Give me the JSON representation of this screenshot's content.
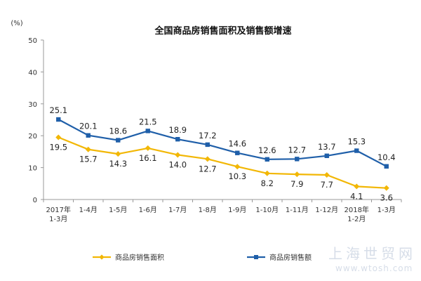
{
  "chart_data": {
    "type": "line",
    "title": "全国商品房销售面积及销售额增速",
    "unit_label": "(%)",
    "categories": [
      [
        "2017年",
        "1-3月"
      ],
      [
        "1-4月"
      ],
      [
        "1-5月"
      ],
      [
        "1-6月"
      ],
      [
        "1-7月"
      ],
      [
        "1-8月"
      ],
      [
        "1-9月"
      ],
      [
        "1-10月"
      ],
      [
        "1-11月"
      ],
      [
        "1-12月"
      ],
      [
        "2018年",
        "1-2月"
      ],
      [
        "1-3月"
      ]
    ],
    "y_ticks": [
      0,
      10,
      20,
      30,
      40,
      50
    ],
    "ylim": [
      0,
      50
    ],
    "grid": false,
    "legend_position": "bottom",
    "series": [
      {
        "name": "商品房销售面积",
        "color": "#f2b705",
        "marker": "diamond",
        "values": [
          19.5,
          15.7,
          14.3,
          16.1,
          14.0,
          12.7,
          10.3,
          8.2,
          7.9,
          7.7,
          4.1,
          3.6
        ],
        "labels": [
          "19.5",
          "15.7",
          "14.3",
          "16.1",
          "14.0",
          "12.7",
          "10.3",
          "8.2",
          "7.9",
          "7.7",
          "4.1",
          "3.6"
        ]
      },
      {
        "name": "商品房销售额",
        "color": "#1f5fa9",
        "marker": "square",
        "values": [
          25.1,
          20.1,
          18.6,
          21.5,
          18.9,
          17.2,
          14.6,
          12.6,
          12.7,
          13.7,
          15.3,
          10.4
        ],
        "labels": [
          "25.1",
          "20.1",
          "18.6",
          "21.5",
          "18.9",
          "17.2",
          "14.6",
          "12.6",
          "12.7",
          "13.7",
          "15.3",
          "10.4"
        ]
      }
    ]
  },
  "watermark": {
    "line1": "上海世贸网",
    "line2": "www.wtosh.com"
  }
}
